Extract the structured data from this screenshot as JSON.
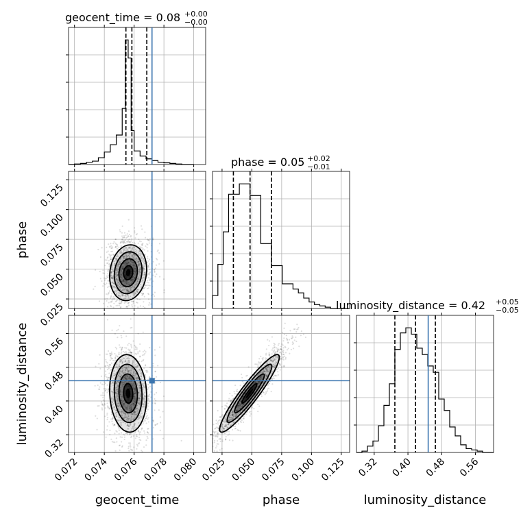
{
  "chart_data": {
    "type": "corner",
    "parameters": [
      "geocent_time",
      "phase",
      "luminosity_distance"
    ],
    "colors": {
      "truth": "#3b75af",
      "hist": "#000000",
      "grid": "#b0b0b0",
      "scatter": "#000000"
    },
    "truth": {
      "geocent_time": 0.0772,
      "phase": null,
      "luminosity_distance": 0.448
    },
    "titles": {
      "geocent_time": {
        "main": "geocent_time = 0.08",
        "sup": "+0.00",
        "sub": "−0.00"
      },
      "phase": {
        "main": "phase = 0.05",
        "sup": "+0.02",
        "sub": "−0.01"
      },
      "luminosity_distance": {
        "main": "luminosity_distance = 0.42",
        "sup": "+0.05",
        "sub": "−0.05"
      }
    },
    "axis_labels": {
      "geocent_time": "geocent_time",
      "phase": "phase",
      "luminosity_distance": "luminosity_distance"
    },
    "ranges": {
      "geocent_time": [
        0.0716,
        0.0808
      ],
      "phase": [
        0.017,
        0.132
      ],
      "luminosity_distance": [
        0.278,
        0.603
      ]
    },
    "ticks": {
      "geocent_time": {
        "values": [
          0.072,
          0.074,
          0.076,
          0.078,
          0.08
        ],
        "labels": [
          "0.072",
          "0.074",
          "0.076",
          "0.078",
          "0.080"
        ]
      },
      "phase": {
        "values": [
          0.025,
          0.05,
          0.075,
          0.1,
          0.125
        ],
        "labels": [
          "0.025",
          "0.050",
          "0.075",
          "0.100",
          "0.125"
        ]
      },
      "luminosity_distance": {
        "values": [
          0.32,
          0.4,
          0.48,
          0.56
        ],
        "labels": [
          "0.32",
          "0.40",
          "0.48",
          "0.56"
        ]
      }
    },
    "quantiles": {
      "geocent_time": [
        0.07545,
        0.07585,
        0.07685
      ],
      "phase": [
        0.0345,
        0.0485,
        0.0665
      ],
      "luminosity_distance": [
        0.369,
        0.418,
        0.465
      ]
    },
    "hist1d": {
      "geocent_time": {
        "edges": [
          0.0716,
          0.072,
          0.0724,
          0.0728,
          0.0732,
          0.0736,
          0.074,
          0.0744,
          0.0748,
          0.0752,
          0.0754,
          0.0756,
          0.0758,
          0.076,
          0.0764,
          0.0768,
          0.0772,
          0.0776,
          0.078,
          0.0784,
          0.0788,
          0.0792,
          0.0796,
          0.08
        ],
        "values": [
          0,
          1,
          2,
          4,
          6,
          12,
          22,
          35,
          52,
          99,
          220,
          188,
          60,
          24,
          15,
          10,
          7,
          4,
          3,
          2,
          1,
          0,
          0
        ]
      },
      "phase": {
        "edges": [
          0.017,
          0.0215,
          0.026,
          0.0305,
          0.035,
          0.0395,
          0.044,
          0.0485,
          0.053,
          0.0575,
          0.062,
          0.0665,
          0.071,
          0.0755,
          0.08,
          0.0845,
          0.089,
          0.0935,
          0.098,
          0.1025,
          0.107,
          0.1115,
          0.116,
          0.1205,
          0.125,
          0.132
        ],
        "values": [
          10,
          34,
          59,
          88,
          88,
          96,
          96,
          87,
          87,
          50,
          50,
          33,
          33,
          19,
          19,
          15,
          12,
          8,
          5,
          3,
          2,
          1,
          0,
          0,
          0
        ]
      },
      "luminosity_distance": {
        "edges": [
          0.278,
          0.291,
          0.304,
          0.317,
          0.33,
          0.343,
          0.356,
          0.369,
          0.382,
          0.395,
          0.408,
          0.421,
          0.434,
          0.447,
          0.46,
          0.473,
          0.486,
          0.499,
          0.512,
          0.525,
          0.538,
          0.551,
          0.564,
          0.577,
          0.59,
          0.603
        ],
        "values": [
          0,
          1,
          5,
          9,
          21,
          37,
          54,
          81,
          94,
          98,
          93,
          82,
          77,
          68,
          63,
          42,
          33,
          20,
          13,
          6,
          3,
          2,
          1,
          0,
          0
        ]
      }
    },
    "contours2d": {
      "geocent_time|phase": {
        "mean": [
          0.0756,
          0.047
        ],
        "sigma": [
          0.00062,
          0.0117
        ],
        "rho": 0.12,
        "skew": 0.0003,
        "scatter_seed": 7,
        "scatter_n": 1500
      },
      "geocent_time|luminosity_distance": {
        "mean": [
          0.0756,
          0.418
        ],
        "sigma": [
          0.00062,
          0.046
        ],
        "rho": -0.08,
        "skew": 0.0003,
        "scatter_seed": 11,
        "scatter_n": 1500
      },
      "phase|luminosity_distance": {
        "mean": [
          0.048,
          0.418
        ],
        "sigma": [
          0.0125,
          0.046
        ],
        "rho": 0.93,
        "skew": 0.0,
        "scatter_seed": 23,
        "scatter_n": 1500
      }
    }
  }
}
